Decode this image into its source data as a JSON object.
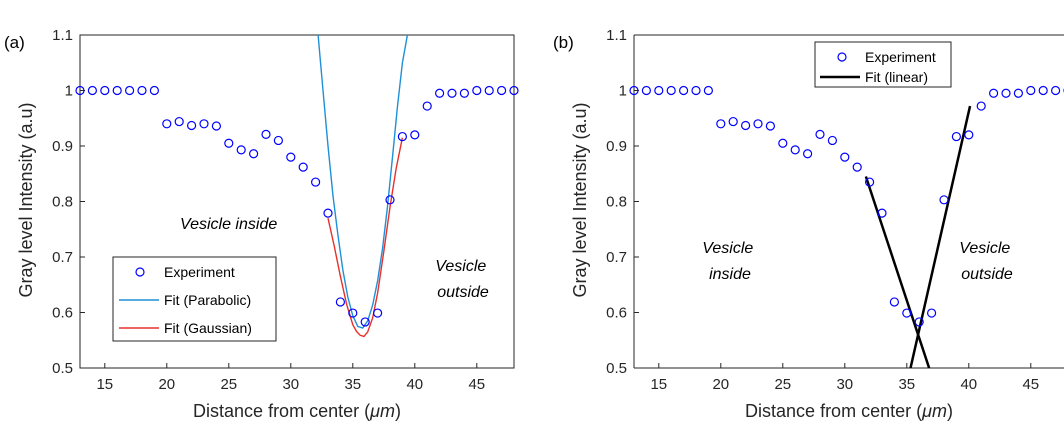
{
  "chart_data": [
    {
      "type": "scatter",
      "panel_label": "(a)",
      "xlabel": "Distance from center (",
      "xlabel_unit": "μm",
      "xlabel_end": ")",
      "ylabel": "Gray level Intensity (a.u)",
      "xlim": [
        13,
        48
      ],
      "ylim": [
        0.5,
        1.1
      ],
      "xticks": [
        15,
        20,
        25,
        30,
        35,
        40,
        45
      ],
      "yticks": [
        0.5,
        0.6,
        0.7,
        0.8,
        0.9,
        1,
        1.1
      ],
      "ytick_labels": [
        "0.5",
        "0.6",
        "0.7",
        "0.8",
        "0.9",
        "1",
        "1.1"
      ],
      "grid": false,
      "legend_position": "bottom-left",
      "series": [
        {
          "name": "Experiment",
          "kind": "markers",
          "color": "#0000ff",
          "x": [
            13,
            14,
            15,
            16,
            17,
            18,
            19,
            20,
            21,
            22,
            23,
            24,
            25,
            26,
            27,
            28,
            29,
            30,
            31,
            32,
            33,
            34,
            35,
            36,
            37,
            38,
            39,
            40,
            41,
            42,
            43,
            44,
            45,
            46,
            47,
            48
          ],
          "y": [
            1,
            1,
            1,
            1,
            1,
            1,
            1,
            0.94,
            0.944,
            0.937,
            0.94,
            0.936,
            0.905,
            0.893,
            0.886,
            0.921,
            0.91,
            0.88,
            0.862,
            0.835,
            0.779,
            0.619,
            0.599,
            0.583,
            0.599,
            0.803,
            0.917,
            0.92,
            0.972,
            0.995,
            0.995,
            0.995,
            1,
            1,
            1,
            1
          ]
        },
        {
          "name": "Fit (Parabolic)",
          "kind": "line",
          "color": "#1f8fd6",
          "x": [
            32.2,
            32.6,
            33,
            33.4,
            33.8,
            34.2,
            34.6,
            35,
            35.4,
            35.8,
            36.2,
            36.6,
            37,
            37.4,
            37.8,
            38.2,
            38.6,
            39,
            39.4
          ],
          "y": [
            1.1,
            1.0,
            0.9,
            0.81,
            0.74,
            0.676,
            0.628,
            0.594,
            0.575,
            0.572,
            0.585,
            0.613,
            0.657,
            0.716,
            0.791,
            0.88,
            0.97,
            1.05,
            1.1
          ]
        },
        {
          "name": "Fit (Gaussian)",
          "kind": "line",
          "color": "#e8302a",
          "x": [
            33,
            33.5,
            34,
            34.5,
            35,
            35.3,
            35.6,
            35.9,
            36.2,
            36.6,
            37,
            37.5,
            38,
            38.5,
            39
          ],
          "y": [
            0.77,
            0.72,
            0.665,
            0.615,
            0.578,
            0.566,
            0.559,
            0.557,
            0.565,
            0.59,
            0.635,
            0.71,
            0.79,
            0.86,
            0.915
          ]
        }
      ],
      "annotations": [
        {
          "text": "Vesicle inside"
        },
        {
          "text_lines": [
            "Vesicle",
            "outside"
          ]
        }
      ]
    },
    {
      "type": "scatter",
      "panel_label": "(b)",
      "xlabel": "Distance from center (",
      "xlabel_unit": "μm",
      "xlabel_end": ")",
      "ylabel": "Gray level Intensity (a.u)",
      "xlim": [
        13,
        48
      ],
      "ylim": [
        0.5,
        1.1
      ],
      "xticks": [
        15,
        20,
        25,
        30,
        35,
        40,
        45
      ],
      "yticks": [
        0.5,
        0.6,
        0.7,
        0.8,
        0.9,
        1,
        1.1
      ],
      "ytick_labels": [
        "0.5",
        "0.6",
        "0.7",
        "0.8",
        "0.9",
        "1",
        "1.1"
      ],
      "grid": false,
      "legend_position": "top-center",
      "series": [
        {
          "name": "Experiment",
          "kind": "markers",
          "color": "#0000ff",
          "x": [
            13,
            14,
            15,
            16,
            17,
            18,
            19,
            20,
            21,
            22,
            23,
            24,
            25,
            26,
            27,
            28,
            29,
            30,
            31,
            32,
            33,
            34,
            35,
            36,
            37,
            38,
            39,
            40,
            41,
            42,
            43,
            44,
            45,
            46,
            47,
            48
          ],
          "y": [
            1,
            1,
            1,
            1,
            1,
            1,
            1,
            0.94,
            0.944,
            0.937,
            0.94,
            0.936,
            0.905,
            0.893,
            0.886,
            0.921,
            0.91,
            0.88,
            0.862,
            0.835,
            0.779,
            0.619,
            0.599,
            0.583,
            0.599,
            0.803,
            0.917,
            0.92,
            0.972,
            0.995,
            0.995,
            0.995,
            1,
            1,
            1,
            1
          ]
        },
        {
          "name": "Fit (linear)",
          "kind": "line",
          "color": "#000000",
          "segments": [
            {
              "x": [
                31.7,
                36.8
              ],
              "y": [
                0.845,
                0.5
              ]
            },
            {
              "x": [
                35.3,
                40.1
              ],
              "y": [
                0.5,
                0.972
              ]
            }
          ]
        }
      ],
      "annotations": [
        {
          "text_lines": [
            "Vesicle",
            "inside"
          ]
        },
        {
          "text_lines": [
            "Vesicle",
            "outside"
          ]
        }
      ]
    }
  ]
}
